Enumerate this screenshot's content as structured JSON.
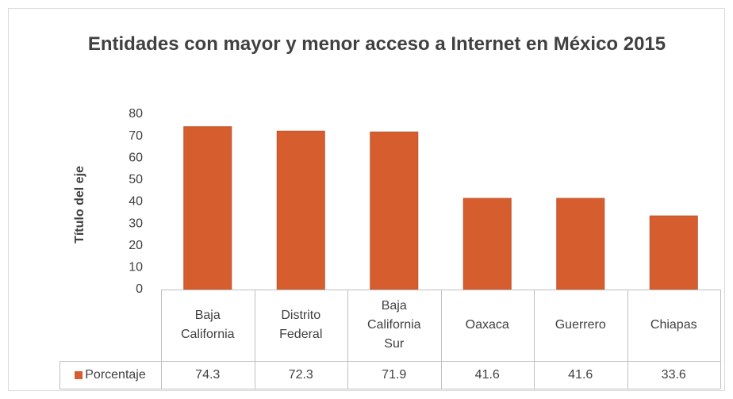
{
  "chart_data": {
    "type": "bar",
    "title": "Entidades con mayor y menor acceso a Internet en México 2015",
    "y_axis_label": "Título del eje",
    "categories": [
      "Baja California",
      "Distrito Federal",
      "Baja California Sur",
      "Oaxaca",
      "Guerrero",
      "Chiapas"
    ],
    "series": [
      {
        "name": "Porcentaje",
        "color": "#d65e2e",
        "values": [
          74.3,
          72.3,
          71.9,
          41.6,
          41.6,
          33.6
        ]
      }
    ],
    "ylim": [
      0,
      80
    ],
    "yticks": [
      0,
      10,
      20,
      30,
      40,
      50,
      60,
      70,
      80
    ],
    "grid": false,
    "data_table": true
  }
}
